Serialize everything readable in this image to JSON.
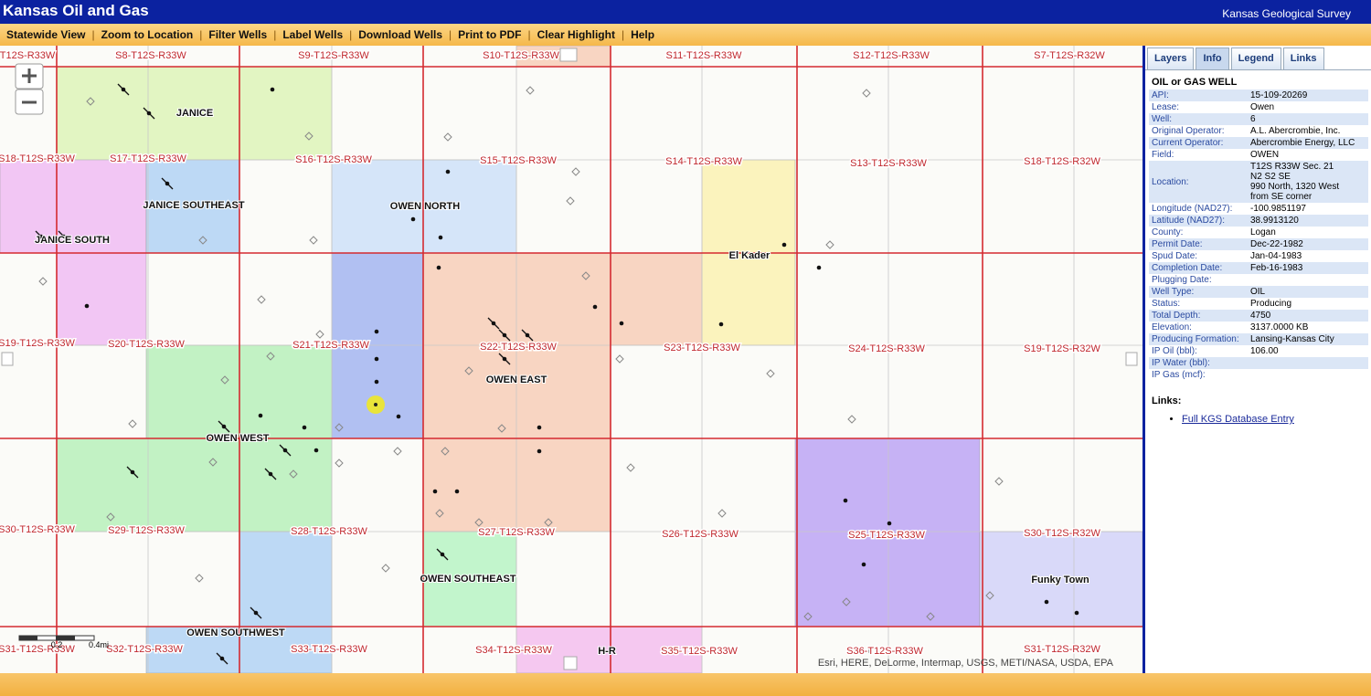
{
  "header": {
    "title": "Kansas Oil and Gas",
    "organization": "Kansas Geological Survey"
  },
  "toolbar": [
    "Statewide View",
    "Zoom to Location",
    "Filter Wells",
    "Label Wells",
    "Download Wells",
    "Print to PDF",
    "Clear Highlight",
    "Help"
  ],
  "map": {
    "sections": [
      "T12S-R33W",
      "S8-T12S-R33W",
      "S9-T12S-R33W",
      "S10-T12S-R33W",
      "S11-T12S-R33W",
      "S12-T12S-R33W",
      "S7-T12S-R32W",
      "S18-T12S-R33W",
      "S17-T12S-R33W",
      "S16-T12S-R33W",
      "S15-T12S-R33W",
      "S14-T12S-R33W",
      "S13-T12S-R33W",
      "S18-T12S-R32W",
      "S19-T12S-R33W",
      "S20-T12S-R33W",
      "S21-T12S-R33W",
      "S22-T12S-R33W",
      "S23-T12S-R33W",
      "S24-T12S-R33W",
      "S19-T12S-R32W",
      "S30-T12S-R33W",
      "S29-T12S-R33W",
      "S28-T12S-R33W",
      "S27-T12S-R33W",
      "S26-T12S-R33W",
      "S25-T12S-R33W",
      "S30-T12S-R32W",
      "S31-T12S-R33W",
      "S32-T12S-R33W",
      "S33-T12S-R33W",
      "S34-T12S-R33W",
      "S35-T12S-R33W",
      "S36-T12S-R33W",
      "S31-T12S-R32W"
    ],
    "fields": [
      "JANICE",
      "JANICE SOUTHEAST",
      "JANICE SOUTH",
      "OWEN NORTH",
      "OWEN EAST",
      "El Kader",
      "OWEN WEST",
      "OWEN SOUTHEAST",
      "OWEN SOUTHWEST",
      "H-R",
      "Funky Town"
    ],
    "scale_labels": [
      "0.2",
      "0.4mi"
    ],
    "attribution": "Esri, HERE, DeLorme, Intermap, USGS, METI/NASA, USDA, EPA"
  },
  "tabs": [
    "Layers",
    "Info",
    "Legend",
    "Links"
  ],
  "info": {
    "heading": "OIL or GAS WELL",
    "rows": [
      {
        "label": "API:",
        "value": "15-109-20269"
      },
      {
        "label": "Lease:",
        "value": "Owen"
      },
      {
        "label": "Well:",
        "value": "6"
      },
      {
        "label": "Original Operator:",
        "value": "A.L. Abercrombie, Inc."
      },
      {
        "label": "Current Operator:",
        "value": "Abercrombie Energy, LLC"
      },
      {
        "label": "Field:",
        "value": "OWEN"
      },
      {
        "label": "Location:",
        "lines": [
          "T12S R33W Sec. 21",
          "N2 S2 SE",
          "990 North, 1320 West",
          "from SE corner"
        ]
      },
      {
        "label": "Longitude (NAD27):",
        "value": "-100.9851197"
      },
      {
        "label": "Latitude (NAD27):",
        "value": "38.9913120"
      },
      {
        "label": "County:",
        "value": "Logan"
      },
      {
        "label": "Permit Date:",
        "value": "Dec-22-1982"
      },
      {
        "label": "Spud Date:",
        "value": "Jan-04-1983"
      },
      {
        "label": "Completion Date:",
        "value": "Feb-16-1983"
      },
      {
        "label": "Plugging Date:"
      },
      {
        "label": "Well Type:",
        "value": "OIL"
      },
      {
        "label": "Status:",
        "value": "Producing"
      },
      {
        "label": "Total Depth:",
        "value": "4750"
      },
      {
        "label": "Elevation:",
        "value": "3137.0000 KB"
      },
      {
        "label": "Producing Formation:",
        "value": "Lansing-Kansas City"
      },
      {
        "label": "IP Oil (bbl):",
        "value": "106.00"
      },
      {
        "label": "IP Water (bbl):"
      },
      {
        "label": "IP Gas (mcf):"
      }
    ],
    "links_heading": "Links:",
    "link": "Full KGS Database Entry"
  }
}
